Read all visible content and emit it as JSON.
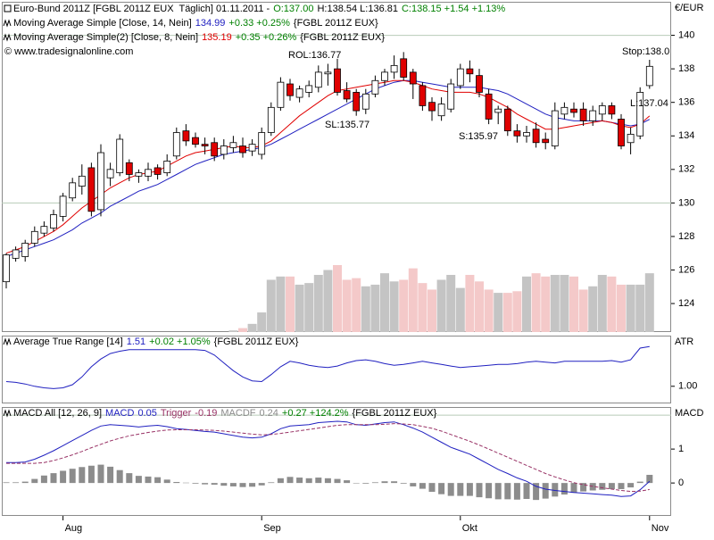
{
  "chart_data": [
    {
      "type": "candlestick",
      "title": "Euro-Bund 2011Z [FGBL 2011Z EUX  Täglich] 01.11.2011 -",
      "quote": [
        {
          "text": "O:137.00",
          "color": "#008000"
        },
        {
          "text": "H:138.54 L:136.81",
          "color": "#000000"
        },
        {
          "text": "C:138.15 +1.54 +1.13%",
          "color": "#008000"
        }
      ],
      "copyright": "© www.tradesignalonline.com",
      "y_label": "€/EUR",
      "positive_color": "#008000",
      "open": [
        125.3,
        126.7,
        126.8,
        127.6,
        128.2,
        128.5,
        129.2,
        130.3,
        131.0,
        132.1,
        129.6,
        131.5,
        131.8,
        132.4,
        131.6,
        131.6,
        132.1,
        131.8,
        132.8,
        134.3,
        133.9,
        133.5,
        133.6,
        132.9,
        133.3,
        133.4,
        133.1,
        132.9,
        134.2,
        135.7,
        137.1,
        136.3,
        136.6,
        136.9,
        137.7,
        138.0,
        136.7,
        136.6,
        135.6,
        136.5,
        137.3,
        137.8,
        138.6,
        137.8,
        137.0,
        136.0,
        135.2,
        135.6,
        137.0,
        138.0,
        137.6,
        136.5,
        135.4,
        135.6,
        134.3,
        134.0,
        134.4,
        133.8,
        133.4,
        135.3,
        135.6,
        135.6,
        134.9,
        135.3,
        135.8,
        135.0,
        133.6,
        134.0,
        137.0
      ],
      "high": [
        127.0,
        127.4,
        127.8,
        128.6,
        128.9,
        129.6,
        130.6,
        131.5,
        132.3,
        132.4,
        133.5,
        132.4,
        134.1,
        132.6,
        132.0,
        132.4,
        132.3,
        132.9,
        134.5,
        134.7,
        134.2,
        133.9,
        133.9,
        133.8,
        134.0,
        133.9,
        133.8,
        134.5,
        136.0,
        137.5,
        137.4,
        137.0,
        137.3,
        138.2,
        138.3,
        138.6,
        137.2,
        136.8,
        136.8,
        137.6,
        138.0,
        138.8,
        139.0,
        138.0,
        137.2,
        136.3,
        136.3,
        137.4,
        138.3,
        138.5,
        138.0,
        136.8,
        135.8,
        135.8,
        134.7,
        134.6,
        134.8,
        134.2,
        136.0,
        136.0,
        136.0,
        136.0,
        135.8,
        136.0,
        136.0,
        135.3,
        134.5,
        136.9,
        138.54
      ],
      "low": [
        124.9,
        126.5,
        126.5,
        127.4,
        128.0,
        128.3,
        128.9,
        130.1,
        130.5,
        129.2,
        129.2,
        131.0,
        131.6,
        131.3,
        131.2,
        131.3,
        131.4,
        131.6,
        132.6,
        133.4,
        133.3,
        132.9,
        132.5,
        132.6,
        133.0,
        132.7,
        132.8,
        132.6,
        134.0,
        135.5,
        136.1,
        136.0,
        136.3,
        136.6,
        137.0,
        136.4,
        136.0,
        135.2,
        135.3,
        136.3,
        137.0,
        137.4,
        137.3,
        136.2,
        135.5,
        134.9,
        134.9,
        135.4,
        136.8,
        137.2,
        136.3,
        134.7,
        134.7,
        134.0,
        133.6,
        133.6,
        133.3,
        133.2,
        133.2,
        135.0,
        135.1,
        134.6,
        134.6,
        134.9,
        135.0,
        133.2,
        132.9,
        133.8,
        136.81
      ],
      "close": [
        126.9,
        127.2,
        127.6,
        128.3,
        128.6,
        129.3,
        130.4,
        131.2,
        131.6,
        129.5,
        133.0,
        132.0,
        133.8,
        131.7,
        131.8,
        132.0,
        131.7,
        132.5,
        134.2,
        133.7,
        133.5,
        133.4,
        132.8,
        133.4,
        133.6,
        133.0,
        133.5,
        134.2,
        135.7,
        137.2,
        136.4,
        136.8,
        137.0,
        137.8,
        137.8,
        136.6,
        136.2,
        135.5,
        136.5,
        137.3,
        137.8,
        138.2,
        137.5,
        137.1,
        135.8,
        135.5,
        135.9,
        137.1,
        138.0,
        137.7,
        136.6,
        135.0,
        135.6,
        134.3,
        134.0,
        134.2,
        133.6,
        133.6,
        135.5,
        135.7,
        135.4,
        134.9,
        135.5,
        135.8,
        135.3,
        133.4,
        134.1,
        136.6,
        138.15
      ],
      "up_color": "#ffffff",
      "down_color": "#e00000",
      "volume": [
        null,
        null,
        null,
        null,
        null,
        null,
        null,
        null,
        null,
        null,
        null,
        null,
        null,
        null,
        null,
        null,
        null,
        null,
        null,
        null,
        null,
        null,
        null,
        null,
        5000,
        12000,
        25000,
        60000,
        160000,
        170000,
        170000,
        145000,
        150000,
        175000,
        190000,
        205000,
        160000,
        165000,
        140000,
        145000,
        180000,
        155000,
        160000,
        195000,
        150000,
        130000,
        160000,
        175000,
        135000,
        175000,
        155000,
        130000,
        120000,
        120000,
        125000,
        170000,
        180000,
        170000,
        175000,
        175000,
        170000,
        130000,
        140000,
        175000,
        170000,
        145000,
        145000,
        145000,
        180000
      ],
      "volume_up_color": "#c4c4c4",
      "volume_down_color": "#f4c9c9",
      "series": [
        {
          "name": "Moving Average Simple [Close, 14, Nein]",
          "label": "134.99",
          "change": "+0.33 +0.25%",
          "source": "{FGBL 2011Z EUX}",
          "color": "#2020c0",
          "values": [
            126.8,
            127.0,
            127.2,
            127.4,
            127.6,
            127.8,
            128.1,
            128.4,
            128.8,
            129.1,
            129.4,
            129.8,
            130.1,
            130.4,
            130.7,
            130.9,
            131.1,
            131.4,
            131.7,
            132.0,
            132.3,
            132.5,
            132.7,
            132.9,
            133.0,
            133.1,
            133.2,
            133.3,
            133.5,
            133.8,
            134.1,
            134.4,
            134.7,
            135.0,
            135.3,
            135.6,
            135.9,
            136.2,
            136.5,
            136.8,
            137.0,
            137.2,
            137.3,
            137.3,
            137.2,
            137.1,
            137.0,
            136.9,
            136.9,
            136.9,
            136.9,
            136.8,
            136.7,
            136.5,
            136.2,
            135.9,
            135.6,
            135.3,
            135.1,
            135.0,
            134.9,
            134.9,
            134.9,
            134.9,
            134.8,
            134.7,
            134.6,
            134.7,
            134.99
          ]
        },
        {
          "name": "Moving Average Simple(2) [Close, 8, Nein]",
          "label": "135.19",
          "change": "+0.35 +0.26%",
          "source": "{FGBL 2011Z EUX}",
          "color": "#e00000",
          "values": [
            127.0,
            127.2,
            127.4,
            127.7,
            128.0,
            128.3,
            128.7,
            129.2,
            129.7,
            130.1,
            130.5,
            130.9,
            131.2,
            131.5,
            131.7,
            131.8,
            131.9,
            132.2,
            132.5,
            132.8,
            133.0,
            133.1,
            133.2,
            133.3,
            133.4,
            133.3,
            133.3,
            133.4,
            133.7,
            134.2,
            134.7,
            135.2,
            135.6,
            136.0,
            136.4,
            136.7,
            136.8,
            136.9,
            137.0,
            137.1,
            137.2,
            137.3,
            137.3,
            137.2,
            137.0,
            136.8,
            136.7,
            136.6,
            136.6,
            136.6,
            136.5,
            136.3,
            136.0,
            135.7,
            135.3,
            135.0,
            134.7,
            134.4,
            134.4,
            134.5,
            134.6,
            134.7,
            134.8,
            134.9,
            134.8,
            134.6,
            134.5,
            134.7,
            135.19
          ]
        }
      ],
      "annotations": [
        "ROL:136.77",
        "SL:135.77",
        "S:135.97",
        "Stop:138.0",
        "L:137.04"
      ],
      "annotation_color": "#1a1aa0",
      "ylim": [
        122.3,
        142
      ],
      "yticks": [
        124,
        126,
        128,
        130,
        132,
        134,
        136,
        138,
        140
      ],
      "grid": [
        130,
        140
      ]
    },
    {
      "type": "line",
      "title": "Average True Range [14]",
      "y_label": "ATR",
      "positive_color": "#008000",
      "series": [
        {
          "label": "1.51",
          "change": "+0.02 +1.05%",
          "source": "{FGBL 2011Z EUX}",
          "color": "#2020c0",
          "values": [
            1.06,
            1.05,
            1.03,
            1.0,
            0.98,
            0.97,
            0.98,
            1.02,
            1.12,
            1.25,
            1.35,
            1.42,
            1.45,
            1.47,
            1.47,
            1.47,
            1.47,
            1.47,
            1.47,
            1.47,
            1.47,
            1.46,
            1.4,
            1.3,
            1.2,
            1.12,
            1.07,
            1.06,
            1.15,
            1.25,
            1.32,
            1.3,
            1.27,
            1.25,
            1.24,
            1.26,
            1.3,
            1.33,
            1.34,
            1.32,
            1.29,
            1.27,
            1.28,
            1.3,
            1.32,
            1.3,
            1.28,
            1.26,
            1.24,
            1.25,
            1.26,
            1.27,
            1.28,
            1.28,
            1.29,
            1.31,
            1.32,
            1.31,
            1.3,
            1.32,
            1.32,
            1.32,
            1.32,
            1.32,
            1.33,
            1.31,
            1.34,
            1.49,
            1.51
          ]
        }
      ],
      "ylim": [
        0.78,
        1.65
      ],
      "yticks": [
        {
          "value": 1,
          "label": "1.00"
        }
      ]
    },
    {
      "type": "macd",
      "title": "MACD All [12, 26, 9]",
      "y_label": "MACD",
      "change": "+0.27 +124.2%",
      "source": "{FGBL 2011Z EUX}",
      "positive_color": "#008000",
      "series": [
        {
          "name": "MACD",
          "label": "0.05",
          "color": "#2020c0",
          "kind": "line",
          "values": [
            0.6,
            0.6,
            0.62,
            0.7,
            0.82,
            0.95,
            1.1,
            1.25,
            1.4,
            1.55,
            1.68,
            1.72,
            1.7,
            1.68,
            1.65,
            1.68,
            1.7,
            1.66,
            1.6,
            1.58,
            1.55,
            1.52,
            1.5,
            1.45,
            1.4,
            1.35,
            1.33,
            1.35,
            1.45,
            1.6,
            1.68,
            1.7,
            1.72,
            1.78,
            1.8,
            1.82,
            1.8,
            1.72,
            1.7,
            1.74,
            1.78,
            1.8,
            1.72,
            1.62,
            1.5,
            1.35,
            1.2,
            1.05,
            0.95,
            0.85,
            0.7,
            0.55,
            0.4,
            0.28,
            0.15,
            0.05,
            -0.1,
            -0.18,
            -0.22,
            -0.25,
            -0.28,
            -0.3,
            -0.32,
            -0.34,
            -0.36,
            -0.4,
            -0.38,
            -0.2,
            0.05
          ]
        },
        {
          "name": "Trigger",
          "label": "-0.19",
          "color": "#993366",
          "kind": "dashed",
          "values": [
            0.58,
            0.58,
            0.58,
            0.58,
            0.6,
            0.66,
            0.74,
            0.83,
            0.93,
            1.04,
            1.14,
            1.24,
            1.32,
            1.39,
            1.44,
            1.49,
            1.53,
            1.56,
            1.57,
            1.57,
            1.57,
            1.56,
            1.55,
            1.53,
            1.5,
            1.47,
            1.44,
            1.42,
            1.43,
            1.46,
            1.5,
            1.54,
            1.58,
            1.62,
            1.66,
            1.7,
            1.72,
            1.72,
            1.72,
            1.72,
            1.73,
            1.75,
            1.74,
            1.72,
            1.67,
            1.61,
            1.53,
            1.43,
            1.33,
            1.23,
            1.12,
            1.0,
            0.88,
            0.76,
            0.64,
            0.52,
            0.4,
            0.28,
            0.18,
            0.09,
            0.01,
            -0.05,
            -0.1,
            -0.14,
            -0.18,
            -0.22,
            -0.25,
            -0.24,
            -0.19
          ]
        },
        {
          "name": "MACDF",
          "label": "0.24",
          "color": "#8c8c8c",
          "kind": "bar",
          "values": [
            0.02,
            0.02,
            0.04,
            0.12,
            0.22,
            0.29,
            0.36,
            0.42,
            0.47,
            0.51,
            0.54,
            0.48,
            0.38,
            0.29,
            0.21,
            0.19,
            0.17,
            0.1,
            0.03,
            0.01,
            -0.02,
            -0.04,
            -0.05,
            -0.08,
            -0.1,
            -0.12,
            -0.11,
            -0.07,
            0.02,
            0.14,
            0.18,
            0.16,
            0.14,
            0.16,
            0.14,
            0.12,
            0.08,
            0.0,
            -0.02,
            0.02,
            0.05,
            0.05,
            -0.02,
            -0.1,
            -0.17,
            -0.26,
            -0.33,
            -0.38,
            -0.38,
            -0.38,
            -0.42,
            -0.45,
            -0.48,
            -0.48,
            -0.49,
            -0.47,
            -0.5,
            -0.46,
            -0.4,
            -0.34,
            -0.29,
            -0.25,
            -0.22,
            -0.2,
            -0.18,
            -0.18,
            -0.13,
            0.04,
            0.24
          ]
        }
      ],
      "categories": [
        null,
        null,
        null,
        null,
        null,
        null,
        "Aug",
        null,
        null,
        null,
        null,
        null,
        null,
        null,
        null,
        null,
        null,
        null,
        null,
        null,
        null,
        null,
        null,
        null,
        null,
        null,
        null,
        "Sep",
        null,
        null,
        null,
        null,
        null,
        null,
        null,
        null,
        null,
        null,
        null,
        null,
        null,
        null,
        null,
        null,
        null,
        null,
        null,
        null,
        "Okt",
        null,
        null,
        null,
        null,
        null,
        null,
        null,
        null,
        null,
        null,
        null,
        null,
        null,
        null,
        null,
        null,
        null,
        null,
        null,
        "Nov"
      ],
      "ylim": [
        -0.97,
        2.24
      ],
      "yticks": [
        0,
        1
      ],
      "grid": [
        2
      ]
    }
  ]
}
